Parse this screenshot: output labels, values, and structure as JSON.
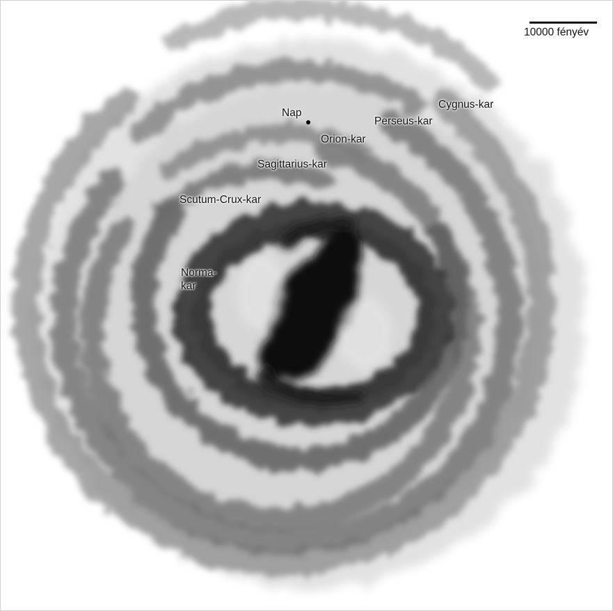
{
  "figure": {
    "scale_bar_label": "10000 fényév",
    "sun_label": "Nap",
    "arms": {
      "cygnus": "Cygnus-kar",
      "perseus": "Perseus-kar",
      "orion": "Orion-kar",
      "sagittarius": "Sagittarius-kar",
      "scutum_crux": "Scutum-Crux-kar",
      "norma": "Norma-\nkar"
    },
    "colors": {
      "background": "#ffffff",
      "arm": "#5a5a5a",
      "core": "#0a0a0a",
      "text": "#111111"
    }
  }
}
